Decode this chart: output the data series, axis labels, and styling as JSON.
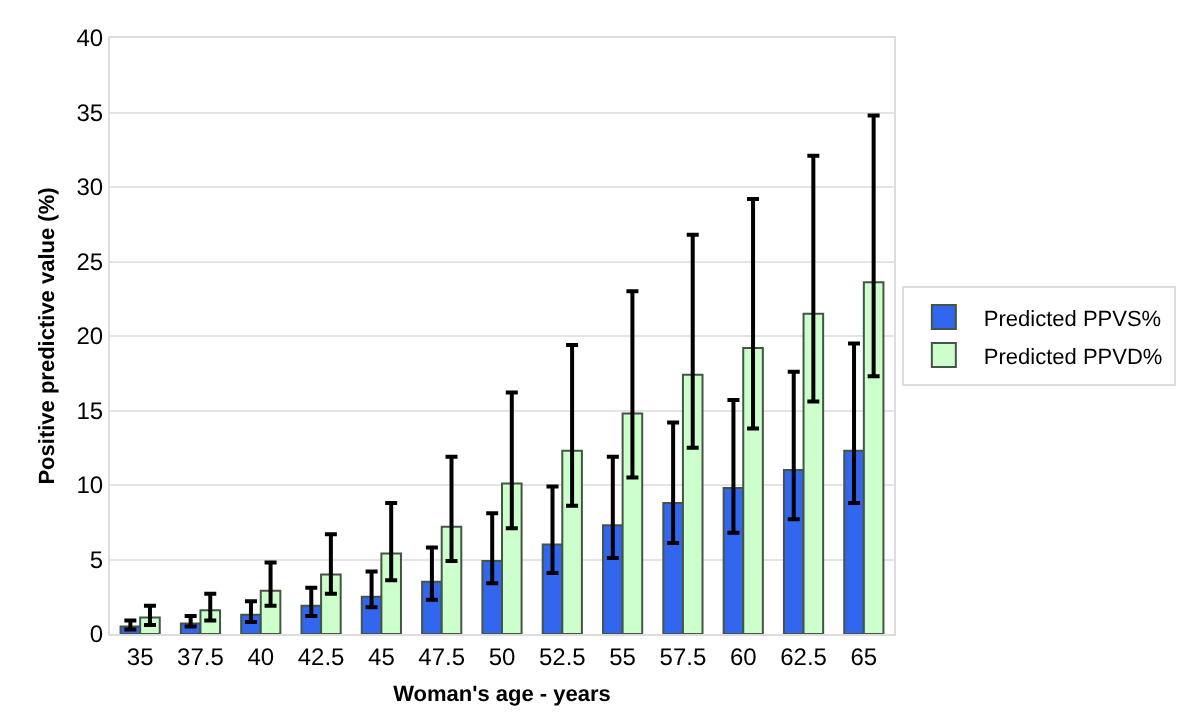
{
  "chart_data": {
    "type": "bar",
    "xlabel": "Woman's age - years",
    "ylabel": "Positive predictive value (%)",
    "categories": [
      "35",
      "37.5",
      "40",
      "42.5",
      "45",
      "47.5",
      "50",
      "52.5",
      "55",
      "57.5",
      "60",
      "62.5",
      "65"
    ],
    "series": [
      {
        "name": "Predicted PPVS%",
        "color": "#3366ee",
        "values": [
          0.5,
          0.7,
          1.3,
          1.9,
          2.5,
          3.5,
          4.9,
          6.0,
          7.3,
          8.8,
          9.8,
          11.0,
          12.3
        ],
        "errors": [
          [
            0.3,
            0.9
          ],
          [
            0.5,
            1.2
          ],
          [
            0.8,
            2.2
          ],
          [
            1.2,
            3.1
          ],
          [
            1.8,
            4.2
          ],
          [
            2.3,
            5.8
          ],
          [
            3.4,
            8.1
          ],
          [
            4.1,
            9.9
          ],
          [
            5.1,
            11.9
          ],
          [
            6.1,
            14.2
          ],
          [
            6.8,
            15.7
          ],
          [
            7.7,
            17.6
          ],
          [
            8.8,
            19.5
          ]
        ]
      },
      {
        "name": "Predicted PPVD%",
        "color": "#ccffcc",
        "values": [
          1.1,
          1.6,
          2.9,
          4.0,
          5.4,
          7.2,
          10.1,
          12.3,
          14.8,
          17.4,
          19.2,
          21.5,
          23.6
        ],
        "errors": [
          [
            0.6,
            1.9
          ],
          [
            0.9,
            2.7
          ],
          [
            1.9,
            4.8
          ],
          [
            2.7,
            6.7
          ],
          [
            3.6,
            8.8
          ],
          [
            4.9,
            11.9
          ],
          [
            7.1,
            16.2
          ],
          [
            8.6,
            19.4
          ],
          [
            10.5,
            23.0
          ],
          [
            12.5,
            26.8
          ],
          [
            13.8,
            29.2
          ],
          [
            15.6,
            32.1
          ],
          [
            17.3,
            34.8
          ]
        ]
      }
    ],
    "ylim": [
      0,
      40
    ],
    "yticks": [
      0,
      5,
      10,
      15,
      20,
      25,
      30,
      35,
      40
    ],
    "grid": "y",
    "legend": "right"
  }
}
